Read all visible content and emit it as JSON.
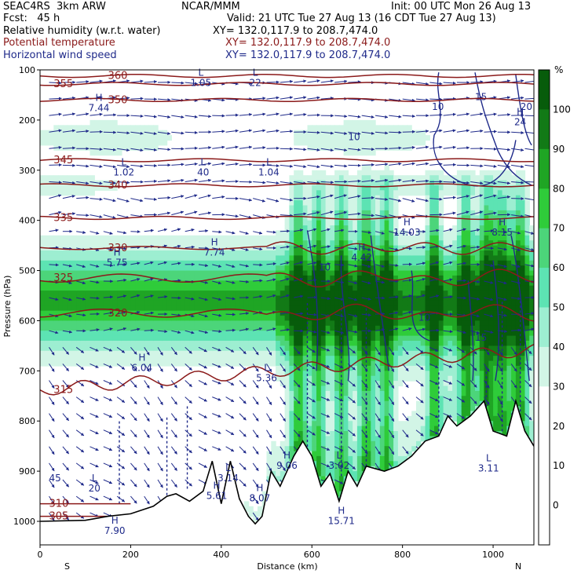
{
  "header": {
    "model": "SEAC4RS  3km ARW",
    "org": "NCAR/MMM",
    "init": "Init: 00 UTC Mon 26 Aug 13",
    "fcst": "Fcst:   45 h",
    "valid": "Valid: 21 UTC Tue 27 Aug 13 (16 CDT Tue 27 Aug 13)",
    "fields": [
      {
        "name": "Relative humidity (w.r.t. water)",
        "xy": "XY= 132.0,117.9 to 208.7,474.0",
        "color": "#000000"
      },
      {
        "name": "Potential temperature",
        "xy": "XY= 132.0,117.9 to 208.7,474.0",
        "color": "#8b1a1a"
      },
      {
        "name": "Horizontal wind speed",
        "xy": "XY= 132.0,117.9 to 208.7,474.0",
        "color": "#1f2a8a"
      }
    ]
  },
  "chart_data": {
    "type": "heatmap",
    "title": "",
    "xlabel": "Distance (km)",
    "ylabel": "Pressure (hPa)",
    "xlim": [
      0,
      1090
    ],
    "ylim": [
      1050,
      100
    ],
    "x_ticks": [
      0,
      200,
      400,
      600,
      800,
      1000
    ],
    "y_ticks": [
      100,
      200,
      300,
      400,
      500,
      600,
      700,
      800,
      900,
      1000
    ],
    "x_end_labels": {
      "left": "S",
      "right": "N"
    },
    "colorbar": {
      "unit": "%",
      "ticks": [
        0,
        10,
        20,
        30,
        40,
        50,
        60,
        70,
        80,
        90,
        100
      ],
      "bins": [
        {
          "from": -10,
          "to": 0,
          "color": "#ffffff"
        },
        {
          "from": 0,
          "to": 10,
          "color": "#ffffff"
        },
        {
          "from": 10,
          "to": 20,
          "color": "#ffffff"
        },
        {
          "from": 20,
          "to": 30,
          "color": "#ffffff"
        },
        {
          "from": 30,
          "to": 40,
          "color": "#d2f5e6"
        },
        {
          "from": 40,
          "to": 50,
          "color": "#9deed1"
        },
        {
          "from": 50,
          "to": 60,
          "color": "#5de3b3"
        },
        {
          "from": 60,
          "to": 70,
          "color": "#4cd57a"
        },
        {
          "from": 70,
          "to": 80,
          "color": "#2fcc3a"
        },
        {
          "from": 80,
          "to": 90,
          "color": "#1fa524"
        },
        {
          "from": 90,
          "to": 100,
          "color": "#127a16"
        },
        {
          "from": 100,
          "to": 110,
          "color": "#075c0b"
        }
      ]
    },
    "theta_contours": [
      {
        "label": "360",
        "p": 112
      },
      {
        "label": "355",
        "p": 128
      },
      {
        "label": "350",
        "p": 160
      },
      {
        "label": "345",
        "p": 280
      },
      {
        "label": "340",
        "p": 330
      },
      {
        "label": "335",
        "p": 395
      },
      {
        "label": "330",
        "p": 455
      },
      {
        "label": "325",
        "p": 515
      },
      {
        "label": "320",
        "p": 585
      },
      {
        "label": "315",
        "p": 738
      },
      {
        "label": "310",
        "p": 965
      },
      {
        "label": "305",
        "p": 990
      }
    ],
    "wind_labels": [
      "10",
      "10",
      "15",
      "10",
      "10",
      "15",
      "20",
      "45"
    ],
    "extrema": [
      {
        "t": "L",
        "v": "1.05",
        "x": 355,
        "p": 112
      },
      {
        "t": "L",
        "v": "22",
        "x": 475,
        "p": 112
      },
      {
        "t": "H",
        "v": "7.44",
        "x": 130,
        "p": 162
      },
      {
        "t": "H",
        "v": "24",
        "x": 1060,
        "p": 190
      },
      {
        "t": "L",
        "v": "1.02",
        "x": 185,
        "p": 290
      },
      {
        "t": "L",
        "v": "40",
        "x": 360,
        "p": 290
      },
      {
        "t": "L",
        "v": "1.04",
        "x": 505,
        "p": 290
      },
      {
        "t": "H",
        "v": "14.03",
        "x": 810,
        "p": 410
      },
      {
        "t": "H",
        "v": "8.15",
        "x": 1020,
        "p": 410
      },
      {
        "t": "H",
        "v": "7.74",
        "x": 385,
        "p": 450
      },
      {
        "t": "H",
        "v": "4.42",
        "x": 710,
        "p": 460
      },
      {
        "t": "H",
        "v": "5.75",
        "x": 170,
        "p": 470
      },
      {
        "t": "H",
        "v": "6.04",
        "x": 225,
        "p": 680
      },
      {
        "t": "L",
        "v": "5.36",
        "x": 500,
        "p": 700
      },
      {
        "t": "H",
        "v": "9.06",
        "x": 545,
        "p": 875
      },
      {
        "t": "L",
        "v": "3.02",
        "x": 660,
        "p": 875
      },
      {
        "t": "L",
        "v": "3.14",
        "x": 415,
        "p": 900
      },
      {
        "t": "L",
        "v": "3.11",
        "x": 990,
        "p": 880
      },
      {
        "t": "L",
        "v": "20",
        "x": 120,
        "p": 920
      },
      {
        "t": "H",
        "v": "5.61",
        "x": 390,
        "p": 935
      },
      {
        "t": "H",
        "v": "8.07",
        "x": 485,
        "p": 940
      },
      {
        "t": "H",
        "v": "15.71",
        "x": 665,
        "p": 985
      },
      {
        "t": "H",
        "v": "7.90",
        "x": 165,
        "p": 1005
      }
    ],
    "terrain": [
      [
        0,
        1000
      ],
      [
        100,
        998
      ],
      [
        150,
        990
      ],
      [
        200,
        985
      ],
      [
        250,
        970
      ],
      [
        280,
        950
      ],
      [
        300,
        945
      ],
      [
        330,
        960
      ],
      [
        360,
        940
      ],
      [
        380,
        880
      ],
      [
        400,
        965
      ],
      [
        420,
        880
      ],
      [
        440,
        955
      ],
      [
        460,
        990
      ],
      [
        475,
        1005
      ],
      [
        490,
        990
      ],
      [
        510,
        900
      ],
      [
        530,
        930
      ],
      [
        560,
        870
      ],
      [
        580,
        840
      ],
      [
        600,
        870
      ],
      [
        620,
        930
      ],
      [
        640,
        905
      ],
      [
        660,
        960
      ],
      [
        680,
        900
      ],
      [
        700,
        930
      ],
      [
        720,
        890
      ],
      [
        760,
        900
      ],
      [
        790,
        890
      ],
      [
        820,
        870
      ],
      [
        850,
        840
      ],
      [
        880,
        830
      ],
      [
        900,
        790
      ],
      [
        920,
        810
      ],
      [
        950,
        790
      ],
      [
        980,
        760
      ],
      [
        1000,
        820
      ],
      [
        1030,
        830
      ],
      [
        1050,
        760
      ],
      [
        1070,
        820
      ],
      [
        1090,
        850
      ]
    ]
  }
}
